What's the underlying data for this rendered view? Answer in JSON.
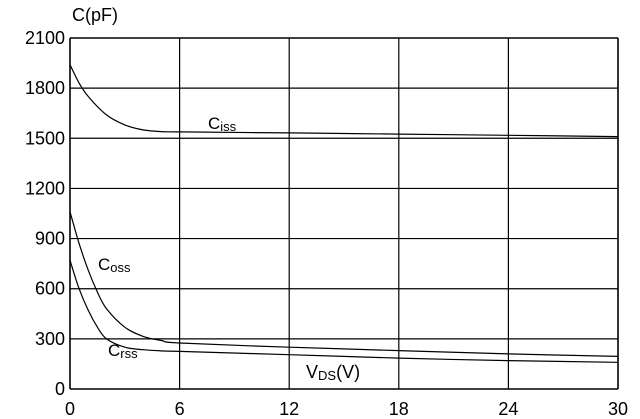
{
  "chart_data": {
    "type": "line",
    "ylabel": "C(pF)",
    "xlabel": {
      "main": "V",
      "sub": "DS",
      "unit": "(V)"
    },
    "xlim": [
      0,
      30
    ],
    "ylim": [
      0,
      2100
    ],
    "x_ticks": [
      0,
      6,
      12,
      18,
      24,
      30
    ],
    "x_tick_labels": [
      "0",
      "6",
      "12",
      "18",
      "24",
      "30"
    ],
    "y_ticks": [
      0,
      300,
      600,
      900,
      1200,
      1500,
      1800,
      2100
    ],
    "y_tick_labels": [
      "0",
      "300",
      "600",
      "900",
      "1200",
      "1500",
      "1800",
      "2100"
    ],
    "grid": true,
    "series": [
      {
        "name": "Ciss",
        "label_main": "C",
        "label_sub": "iss",
        "points": [
          [
            0,
            1940
          ],
          [
            0.5,
            1830
          ],
          [
            1,
            1750
          ],
          [
            2,
            1640
          ],
          [
            3,
            1580
          ],
          [
            4,
            1550
          ],
          [
            5,
            1540
          ],
          [
            6,
            1538
          ],
          [
            12,
            1532
          ],
          [
            18,
            1525
          ],
          [
            24,
            1518
          ],
          [
            30,
            1510
          ]
        ]
      },
      {
        "name": "Coss",
        "label_main": "C",
        "label_sub": "oss",
        "points": [
          [
            0,
            1060
          ],
          [
            0.5,
            870
          ],
          [
            1,
            710
          ],
          [
            1.5,
            580
          ],
          [
            2,
            480
          ],
          [
            3,
            370
          ],
          [
            4,
            315
          ],
          [
            5,
            290
          ],
          [
            6,
            275
          ],
          [
            12,
            250
          ],
          [
            18,
            230
          ],
          [
            24,
            210
          ],
          [
            30,
            195
          ]
        ]
      },
      {
        "name": "Crss",
        "label_main": "C",
        "label_sub": "rss",
        "points": [
          [
            0,
            770
          ],
          [
            0.5,
            600
          ],
          [
            1,
            470
          ],
          [
            1.5,
            370
          ],
          [
            2,
            300
          ],
          [
            3,
            250
          ],
          [
            4,
            235
          ],
          [
            5,
            228
          ],
          [
            6,
            225
          ],
          [
            12,
            205
          ],
          [
            18,
            185
          ],
          [
            24,
            170
          ],
          [
            30,
            160
          ]
        ]
      }
    ]
  }
}
